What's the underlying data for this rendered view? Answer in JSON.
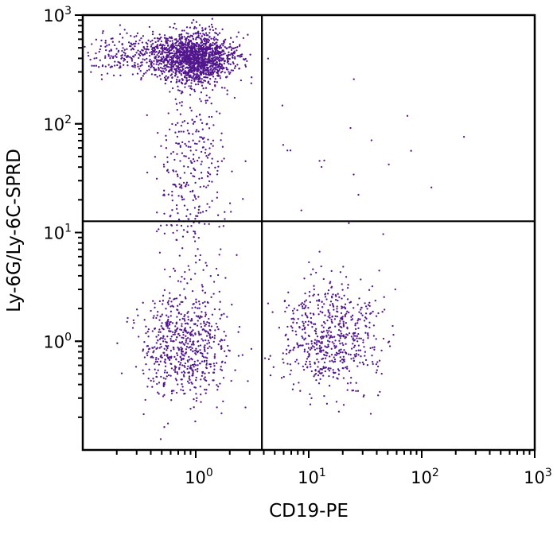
{
  "chart_data": {
    "type": "scatter",
    "title": "",
    "xlabel": "CD19-PE",
    "ylabel": "Ly-6G/Ly-6C-SPRD",
    "xscale": "log",
    "yscale": "log",
    "xlim": [
      0.1,
      1000
    ],
    "ylim": [
      0.1,
      1000
    ],
    "x_ticks": [
      {
        "base": "10",
        "exp": "0",
        "value": 1
      },
      {
        "base": "10",
        "exp": "1",
        "value": 10
      },
      {
        "base": "10",
        "exp": "2",
        "value": 100
      },
      {
        "base": "10",
        "exp": "3",
        "value": 1000
      }
    ],
    "y_ticks": [
      {
        "base": "10",
        "exp": "0",
        "value": 1
      },
      {
        "base": "10",
        "exp": "1",
        "value": 10
      },
      {
        "base": "10",
        "exp": "2",
        "value": 100
      },
      {
        "base": "10",
        "exp": "3",
        "value": 1000
      }
    ],
    "quadrant_gates": {
      "x": 3.85,
      "y": 12.7
    },
    "point_color": "#51168c",
    "grid": false,
    "populations": [
      {
        "name": "Ly-6G+ granulocytes (main)",
        "center": [
          1.0,
          400
        ],
        "log_sd": [
          0.17,
          0.12
        ],
        "count": 1400
      },
      {
        "name": "Ly-6G+ granulocytes (left tail)",
        "center": [
          0.4,
          440
        ],
        "log_sd": [
          0.3,
          0.1
        ],
        "count": 420
      },
      {
        "name": "Ly-6G intermediate stream",
        "center": [
          0.9,
          35
        ],
        "log_sd": [
          0.15,
          0.5
        ],
        "count": 330
      },
      {
        "name": "double negative",
        "center": [
          0.8,
          0.9
        ],
        "log_sd": [
          0.2,
          0.25
        ],
        "count": 650
      },
      {
        "name": "CD19+ B cells",
        "center": [
          16,
          1.1
        ],
        "log_sd": [
          0.22,
          0.25
        ],
        "count": 600
      },
      {
        "name": "sparse upper-right events",
        "center": [
          20,
          80
        ],
        "log_sd": [
          0.4,
          0.5
        ],
        "count": 20
      }
    ]
  }
}
